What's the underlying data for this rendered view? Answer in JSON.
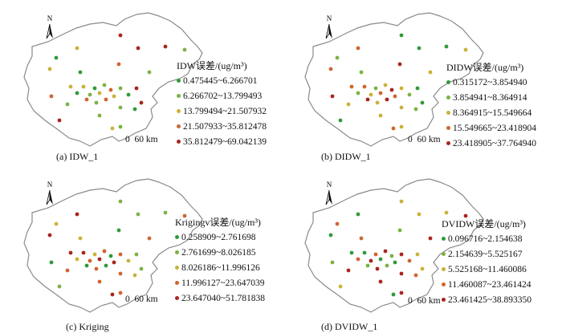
{
  "colors": {
    "c1": "#2f9b3a",
    "c2": "#7cb342",
    "c3": "#c9b23a",
    "c4": "#d0652f",
    "c5": "#a9251f",
    "boundary": "#8a8a8a"
  },
  "north_label": "N",
  "scale": {
    "zero": "0",
    "label": "60 km"
  },
  "panels": [
    {
      "caption": "(a) IDW_1",
      "legend_title": "IDW误差/(ug/m³)",
      "classes": [
        "0.475445~6.266701",
        "6.266702~13.799493",
        "13.799494~21.507932",
        "21.507933~35.812478",
        "35.812479~69.042139"
      ]
    },
    {
      "caption": "(b) DIDW_1",
      "legend_title": "DIDW误差/(ug/m³)",
      "classes": [
        "0.315172~3.854940",
        "3.854941~8.364914",
        "8.364915~15.549664",
        "15.549665~23.418904",
        "23.418905~37.764940"
      ]
    },
    {
      "caption": "(c) Kriging",
      "legend_title": "Krigingv误差/(ug/m³)",
      "classes": [
        "0.258909~2.761698",
        "2.761699~8.026185",
        "8.026186~11.996126",
        "11.996127~23.647039",
        "23.647040~51.781838"
      ]
    },
    {
      "caption": "(d) DVIDW_1",
      "legend_title": "DVIDW误差/(ug/m³)",
      "classes": [
        "0.096716~2.154638",
        "2.154639~5.525167",
        "5.525168~11.460086",
        "11.460087~23.461424",
        "23.461425~38.893350"
      ]
    }
  ]
}
